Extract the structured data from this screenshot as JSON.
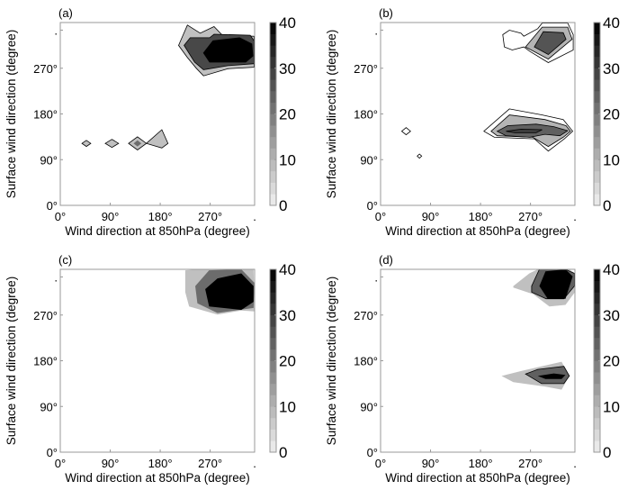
{
  "chart_data": [
    {
      "type": "heatmap",
      "panel_label": "(a)",
      "xlabel": "Wind direction at 850hPa (degree)",
      "ylabel": "Surface wind direction (degree)",
      "xlim": [
        0,
        350
      ],
      "ylim": [
        0,
        360
      ],
      "xticks": [
        {
          "v": 0,
          "label": "0°"
        },
        {
          "v": 90,
          "label": "90°"
        },
        {
          "v": 180,
          "label": "180°"
        },
        {
          "v": 270,
          "label": "270°"
        },
        {
          "v": 350,
          "label": "."
        }
      ],
      "yticks": [
        {
          "v": 0,
          "label": "0°"
        },
        {
          "v": 90,
          "label": "90°"
        },
        {
          "v": 180,
          "label": "180°"
        },
        {
          "v": 270,
          "label": "270°"
        },
        {
          "v": 345,
          "label": "."
        }
      ],
      "colorbar": {
        "range": [
          0,
          40
        ],
        "ticks": [
          "0",
          "10",
          "20",
          "30",
          "40"
        ]
      },
      "contours": [
        {
          "level": 8,
          "line": true,
          "pts": [
            [
              213,
              315
            ],
            [
              229,
              355
            ],
            [
              252,
              339
            ],
            [
              277,
              352
            ],
            [
              291,
              336
            ],
            [
              349,
              333
            ],
            [
              349,
              272
            ],
            [
              302,
              269
            ],
            [
              258,
              255
            ],
            [
              245,
              270
            ],
            [
              229,
              291
            ]
          ]
        },
        {
          "level": 28,
          "line": true,
          "pts": [
            [
              223,
              315
            ],
            [
              234,
              330
            ],
            [
              269,
              330
            ],
            [
              277,
              337
            ],
            [
              342,
              335
            ],
            [
              349,
              324
            ],
            [
              349,
              279
            ],
            [
              302,
              275
            ],
            [
              258,
              267
            ],
            [
              242,
              282
            ]
          ]
        },
        {
          "level": 40,
          "line": true,
          "pts": [
            [
              258,
              300
            ],
            [
              275,
              324
            ],
            [
              323,
              330
            ],
            [
              345,
              318
            ],
            [
              347,
              294
            ],
            [
              334,
              282
            ],
            [
              269,
              282
            ]
          ]
        },
        {
          "level": 8,
          "line": true,
          "pts": [
            [
              39,
              122
            ],
            [
              47,
              128
            ],
            [
              55,
              122
            ],
            [
              47,
              116
            ]
          ]
        },
        {
          "level": 8,
          "line": true,
          "pts": [
            [
              81,
              122
            ],
            [
              93,
              130
            ],
            [
              105,
              122
            ],
            [
              93,
              114
            ]
          ]
        },
        {
          "level": 8,
          "line": true,
          "pts": [
            [
              123,
              122
            ],
            [
              139,
              135
            ],
            [
              155,
              122
            ],
            [
              139,
              109
            ]
          ]
        },
        {
          "level": 22,
          "line": false,
          "pts": [
            [
              132,
              122
            ],
            [
              139,
              128
            ],
            [
              146,
              122
            ],
            [
              139,
              116
            ]
          ]
        },
        {
          "level": 8,
          "line": true,
          "pts": [
            [
              155,
              122
            ],
            [
              183,
              149
            ],
            [
              194,
              122
            ],
            [
              183,
              113
            ]
          ]
        }
      ]
    },
    {
      "type": "heatmap",
      "panel_label": "(b)",
      "xlabel": "Wind direction at 850hPa (degree)",
      "ylabel": "Surface wind direction (degree)",
      "xlim": [
        0,
        350
      ],
      "ylim": [
        0,
        360
      ],
      "xticks": [
        {
          "v": 0,
          "label": "0°"
        },
        {
          "v": 90,
          "label": "90°"
        },
        {
          "v": 180,
          "label": "180°"
        },
        {
          "v": 270,
          "label": "270°"
        },
        {
          "v": 350,
          "label": "."
        }
      ],
      "yticks": [
        {
          "v": 0,
          "label": "0°"
        },
        {
          "v": 90,
          "label": "90°"
        },
        {
          "v": 180,
          "label": "180°"
        },
        {
          "v": 270,
          "label": "270°"
        },
        {
          "v": 345,
          "label": "."
        }
      ],
      "colorbar": {
        "range": [
          0,
          40
        ],
        "ticks": [
          "0",
          "10",
          "20",
          "30",
          "40"
        ]
      },
      "contours": [
        {
          "level": 0,
          "line": true,
          "pts": [
            [
              220,
              336
            ],
            [
              232,
              345
            ],
            [
              253,
              339
            ],
            [
              258,
              333
            ],
            [
              283,
              348
            ],
            [
              291,
              359
            ],
            [
              337,
              359
            ],
            [
              347,
              336
            ],
            [
              347,
              306
            ],
            [
              302,
              281
            ],
            [
              269,
              303
            ],
            [
              258,
              312
            ],
            [
              237,
              306
            ],
            [
              223,
              312
            ]
          ]
        },
        {
          "level": 10,
          "line": true,
          "pts": [
            [
              261,
              312
            ],
            [
              291,
              351
            ],
            [
              337,
              351
            ],
            [
              345,
              327
            ],
            [
              302,
              288
            ]
          ]
        },
        {
          "level": 26,
          "line": true,
          "pts": [
            [
              277,
              312
            ],
            [
              293,
              342
            ],
            [
              329,
              340
            ],
            [
              334,
              327
            ],
            [
              302,
              297
            ]
          ]
        },
        {
          "level": 0,
          "line": true,
          "pts": [
            [
              186,
              146
            ],
            [
              232,
              190
            ],
            [
              291,
              178
            ],
            [
              329,
              169
            ],
            [
              346,
              146
            ],
            [
              331,
              131
            ],
            [
              302,
              107
            ],
            [
              277,
              131
            ],
            [
              205,
              134
            ]
          ]
        },
        {
          "level": 10,
          "line": true,
          "pts": [
            [
              199,
              146
            ],
            [
              232,
              178
            ],
            [
              296,
              169
            ],
            [
              334,
              157
            ],
            [
              342,
              146
            ],
            [
              329,
              134
            ],
            [
              302,
              116
            ],
            [
              274,
              134
            ],
            [
              210,
              137
            ]
          ]
        },
        {
          "level": 24,
          "line": true,
          "pts": [
            [
              210,
              146
            ],
            [
              229,
              157
            ],
            [
              280,
              160
            ],
            [
              312,
              155
            ],
            [
              337,
              147
            ],
            [
              323,
              137
            ],
            [
              296,
              140
            ],
            [
              269,
              134
            ],
            [
              226,
              137
            ]
          ]
        },
        {
          "level": 30,
          "line": true,
          "pts": [
            [
              226,
              146
            ],
            [
              253,
              150
            ],
            [
              291,
              149
            ],
            [
              280,
              143
            ],
            [
              242,
              143
            ]
          ]
        },
        {
          "level": 0,
          "line": true,
          "pts": [
            [
              38,
              146
            ],
            [
              46,
              153
            ],
            [
              54,
              146
            ],
            [
              46,
              139
            ]
          ]
        },
        {
          "level": 0,
          "line": true,
          "pts": [
            [
              66,
              97
            ],
            [
              70,
              101
            ],
            [
              74,
              97
            ],
            [
              70,
              93
            ]
          ]
        }
      ]
    },
    {
      "type": "heatmap",
      "panel_label": "(c)",
      "xlabel": "Wind direction at 850hPa (degree)",
      "ylabel": "Surface wind direction (degree)",
      "xlim": [
        0,
        350
      ],
      "ylim": [
        0,
        360
      ],
      "xticks": [
        {
          "v": 0,
          "label": "0°"
        },
        {
          "v": 90,
          "label": "90°"
        },
        {
          "v": 180,
          "label": "180°"
        },
        {
          "v": 270,
          "label": "270°"
        },
        {
          "v": 350,
          "label": "."
        }
      ],
      "yticks": [
        {
          "v": 0,
          "label": "0°"
        },
        {
          "v": 90,
          "label": "90°"
        },
        {
          "v": 180,
          "label": "180°"
        },
        {
          "v": 270,
          "label": "270°"
        },
        {
          "v": 345,
          "label": "."
        }
      ],
      "colorbar": {
        "range": [
          0,
          40
        ],
        "ticks": [
          "0",
          "10",
          "20",
          "30",
          "40"
        ]
      },
      "contours": [
        {
          "level": 8,
          "line": false,
          "pts": [
            [
              225,
              358
            ],
            [
              247,
              360
            ],
            [
              276,
              360
            ],
            [
              326,
              360
            ],
            [
              348,
              360
            ],
            [
              350,
              277
            ],
            [
              326,
              279
            ],
            [
              283,
              271
            ],
            [
              232,
              287
            ],
            [
              225,
              315
            ]
          ]
        },
        {
          "level": 22,
          "line": false,
          "pts": [
            [
              243,
              327
            ],
            [
              268,
              358
            ],
            [
              326,
              360
            ],
            [
              350,
              333
            ],
            [
              348,
              284
            ],
            [
              283,
              274
            ],
            [
              247,
              293
            ]
          ]
        },
        {
          "level": 40,
          "line": false,
          "pts": [
            [
              261,
              321
            ],
            [
              283,
              342
            ],
            [
              326,
              352
            ],
            [
              348,
              327
            ],
            [
              348,
              296
            ],
            [
              326,
              280
            ],
            [
              268,
              287
            ]
          ]
        }
      ]
    },
    {
      "type": "heatmap",
      "panel_label": "(d)",
      "xlabel": "Wind direction at 850hPa (degree)",
      "ylabel": "Surface wind direction (degree)",
      "xlim": [
        0,
        350
      ],
      "ylim": [
        0,
        360
      ],
      "xticks": [
        {
          "v": 0,
          "label": "0°"
        },
        {
          "v": 90,
          "label": "90°"
        },
        {
          "v": 180,
          "label": "180°"
        },
        {
          "v": 270,
          "label": "270°"
        },
        {
          "v": 350,
          "label": "."
        }
      ],
      "yticks": [
        {
          "v": 0,
          "label": "0°"
        },
        {
          "v": 90,
          "label": "90°"
        },
        {
          "v": 180,
          "label": "180°"
        },
        {
          "v": 270,
          "label": "270°"
        },
        {
          "v": 345,
          "label": "."
        }
      ],
      "colorbar": {
        "range": [
          0,
          40
        ],
        "ticks": [
          "0",
          "10",
          "20",
          "30",
          "40"
        ]
      },
      "contours": [
        {
          "level": 8,
          "line": false,
          "pts": [
            [
              239,
              327
            ],
            [
              268,
              352
            ],
            [
              283,
              360
            ],
            [
              340,
              360
            ],
            [
              350,
              352
            ],
            [
              350,
              315
            ],
            [
              333,
              290
            ],
            [
              304,
              287
            ],
            [
              275,
              311
            ],
            [
              239,
              324
            ]
          ]
        },
        {
          "level": 24,
          "line": true,
          "pts": [
            [
              272,
              327
            ],
            [
              286,
              360
            ],
            [
              333,
              360
            ],
            [
              349,
              352
            ],
            [
              349,
              327
            ],
            [
              330,
              302
            ],
            [
              298,
              302
            ],
            [
              272,
              315
            ]
          ]
        },
        {
          "level": 40,
          "line": false,
          "pts": [
            [
              286,
              327
            ],
            [
              297,
              356
            ],
            [
              333,
              360
            ],
            [
              346,
              346
            ],
            [
              333,
              302
            ],
            [
              301,
              302
            ]
          ]
        },
        {
          "level": 8,
          "line": false,
          "pts": [
            [
              218,
              150
            ],
            [
              254,
              160
            ],
            [
              326,
              178
            ],
            [
              340,
              150
            ],
            [
              326,
              123
            ],
            [
              297,
              129
            ],
            [
              239,
              138
            ]
          ]
        },
        {
          "level": 24,
          "line": true,
          "pts": [
            [
              261,
              154
            ],
            [
              283,
              163
            ],
            [
              330,
              169
            ],
            [
              340,
              150
            ],
            [
              330,
              135
            ],
            [
              290,
              135
            ]
          ]
        },
        {
          "level": 40,
          "line": false,
          "pts": [
            [
              283,
              150
            ],
            [
              312,
              155
            ],
            [
              333,
              152
            ],
            [
              326,
              144
            ],
            [
              297,
              144
            ]
          ]
        }
      ]
    }
  ]
}
